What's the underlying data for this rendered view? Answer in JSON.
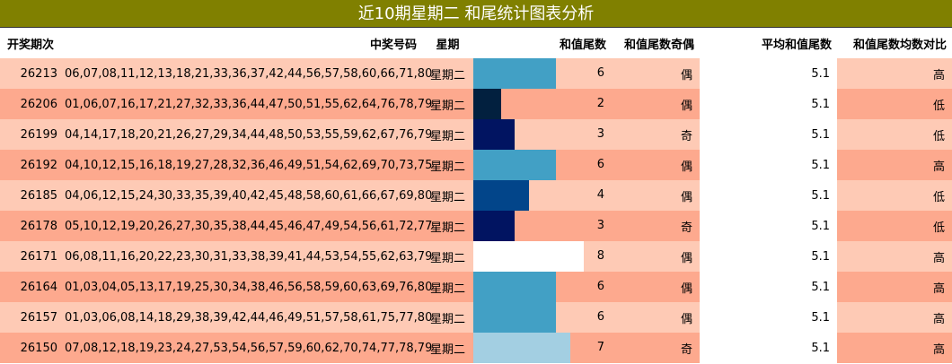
{
  "title": "近10期星期二 和尾统计图表分析",
  "headers": {
    "issue": "开奖期次",
    "numbers": "中奖号码",
    "weekday": "星期",
    "tail_sum": "和值尾数",
    "parity": "和值尾数奇偶",
    "avg_tail": "平均和值尾数",
    "compare": "和值尾数均数对比"
  },
  "bar_max": 10,
  "rows": [
    {
      "issue": "26213",
      "numbers": "06,07,08,11,12,13,18,21,33,36,37,42,44,56,57,58,60,66,71,80",
      "weekday": "星期二",
      "tail": 6,
      "tail_label": "6",
      "parity": "偶",
      "avg": "5.1",
      "cmp": "高",
      "bar_color": "#42a0c5"
    },
    {
      "issue": "26206",
      "numbers": "01,06,07,16,17,21,27,32,33,36,44,47,50,51,55,62,64,76,78,79",
      "weekday": "星期二",
      "tail": 2,
      "tail_label": "2",
      "parity": "偶",
      "avg": "5.1",
      "cmp": "低",
      "bar_color": "#02203f"
    },
    {
      "issue": "26199",
      "numbers": "04,14,17,18,20,21,26,27,29,34,44,48,50,53,55,59,62,67,76,79",
      "weekday": "星期二",
      "tail": 3,
      "tail_label": "3",
      "parity": "奇",
      "avg": "5.1",
      "cmp": "低",
      "bar_color": "#011461"
    },
    {
      "issue": "26192",
      "numbers": "04,10,12,15,16,18,19,27,28,32,36,46,49,51,54,62,69,70,73,75",
      "weekday": "星期二",
      "tail": 6,
      "tail_label": "6",
      "parity": "偶",
      "avg": "5.1",
      "cmp": "高",
      "bar_color": "#42a0c5"
    },
    {
      "issue": "26185",
      "numbers": "04,06,12,15,24,30,33,35,39,40,42,45,48,58,60,61,66,67,69,80",
      "weekday": "星期二",
      "tail": 4,
      "tail_label": "4",
      "parity": "偶",
      "avg": "5.1",
      "cmp": "低",
      "bar_color": "#02458a"
    },
    {
      "issue": "26178",
      "numbers": "05,10,12,19,20,26,27,30,35,38,44,45,46,47,49,54,56,61,72,77",
      "weekday": "星期二",
      "tail": 3,
      "tail_label": "3",
      "parity": "奇",
      "avg": "5.1",
      "cmp": "低",
      "bar_color": "#011461"
    },
    {
      "issue": "26171",
      "numbers": "06,08,11,16,20,22,23,30,31,33,38,39,41,44,53,54,55,62,63,79",
      "weekday": "星期二",
      "tail": 8,
      "tail_label": "8",
      "parity": "偶",
      "avg": "5.1",
      "cmp": "高",
      "bar_color": "#ffffff"
    },
    {
      "issue": "26164",
      "numbers": "01,03,04,05,13,17,19,25,30,34,38,46,56,58,59,60,63,69,76,80",
      "weekday": "星期二",
      "tail": 6,
      "tail_label": "6",
      "parity": "偶",
      "avg": "5.1",
      "cmp": "高",
      "bar_color": "#42a0c5"
    },
    {
      "issue": "26157",
      "numbers": "01,03,06,08,14,18,29,38,39,42,44,46,49,51,57,58,61,75,77,80",
      "weekday": "星期二",
      "tail": 6,
      "tail_label": "6",
      "parity": "偶",
      "avg": "5.1",
      "cmp": "高",
      "bar_color": "#42a0c5"
    },
    {
      "issue": "26150",
      "numbers": "07,08,12,18,19,23,24,27,53,54,56,57,59,60,62,70,74,77,78,79",
      "weekday": "星期二",
      "tail": 7,
      "tail_label": "7",
      "parity": "奇",
      "avg": "5.1",
      "cmp": "高",
      "bar_color": "#a3cfe2"
    }
  ]
}
